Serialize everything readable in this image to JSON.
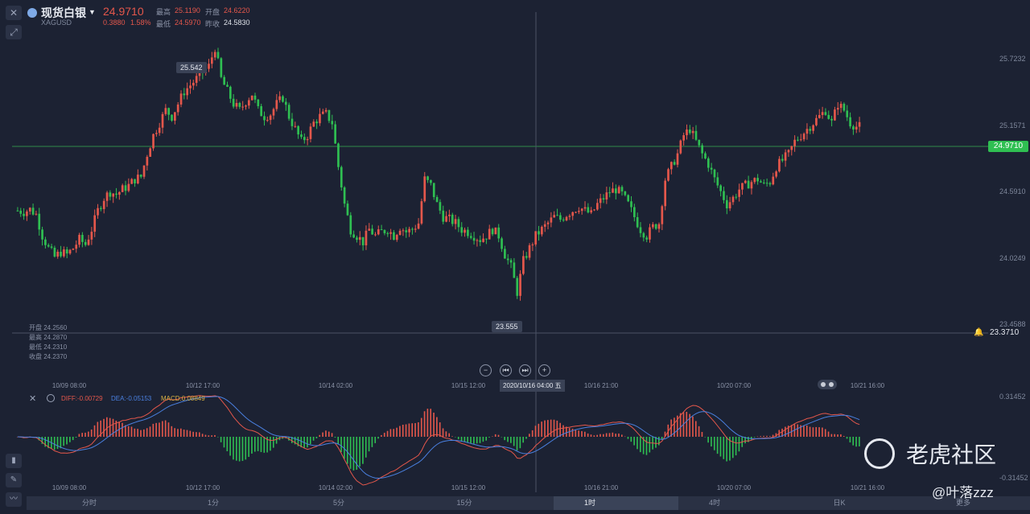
{
  "header": {
    "symbol_name": "现货白银",
    "symbol_code": "XAGUSD",
    "last_price": "24.9710",
    "change": "0.3880",
    "change_pct": "1.58%",
    "high_label": "最高",
    "high_value": "25.1190",
    "open_label": "开盘",
    "open_value": "24.6220",
    "low_label": "最低",
    "low_value": "24.5970",
    "prev_close_label": "昨收",
    "prev_close_value": "24.5830"
  },
  "toolbar": {
    "close_icon": "close-icon",
    "draw_icon": "line-tool-icon"
  },
  "main_chart": {
    "high_marker": "25.542",
    "low_marker": "23.555",
    "current_price_tag": "24.9710",
    "crosshair_price_tag": "23.3710",
    "y_ticks": [
      "25.7232",
      "25.1571",
      "24.5910",
      "24.0249",
      "23.4588"
    ],
    "ohlc_panel": [
      {
        "label": "开盘",
        "value": "24.2560"
      },
      {
        "label": "最高",
        "value": "24.2870"
      },
      {
        "label": "最低",
        "value": "24.2310"
      },
      {
        "label": "收盘",
        "value": "24.2370"
      }
    ],
    "date_labels": [
      "10/09 08:00",
      "10/12 17:00",
      "10/14 02:00",
      "10/15 12:00",
      "10/16 21:00",
      "10/20 07:00",
      "10/21 16:00"
    ],
    "crosshair_date": "2020/10/16 04:00 五",
    "colors": {
      "up": "#e4574b",
      "down": "#2fbf52"
    }
  },
  "macd": {
    "diff_label": "DIFF:-0.00729",
    "dea_label": "DEA:-0.05153",
    "macd_label": "MACD:0.08849",
    "y_top": "0.31452",
    "y_bottom": "-0.31452",
    "date_labels": [
      "10/09 08:00",
      "10/12 17:00",
      "10/14 02:00",
      "10/15 12:00",
      "10/16 21:00",
      "10/20 07:00",
      "10/21 16:00"
    ]
  },
  "timeframes": [
    "分时",
    "1分",
    "5分",
    "15分",
    "1时",
    "4时",
    "日K",
    "更多"
  ],
  "active_timeframe": "1时",
  "watermark": {
    "brand": "老虎社区",
    "user": "@叶落zzz"
  },
  "chart_data": {
    "type": "candlestick",
    "title": "现货白银 XAGUSD",
    "ylim": [
      23.3,
      25.8
    ],
    "y_ticks": [
      25.7232,
      25.1571,
      24.591,
      24.0249,
      23.4588
    ],
    "x_labels": [
      "10/09 08:00",
      "10/12 17:00",
      "10/14 02:00",
      "10/15 12:00",
      "10/16 21:00",
      "10/20 07:00",
      "10/21 16:00"
    ],
    "close_path": [
      24.25,
      24.24,
      24.26,
      24.22,
      24.05,
      23.95,
      23.88,
      23.92,
      23.9,
      23.95,
      24.02,
      23.98,
      24.1,
      24.25,
      24.35,
      24.4,
      24.38,
      24.42,
      24.45,
      24.5,
      24.52,
      24.7,
      24.85,
      24.95,
      25.05,
      25.0,
      25.1,
      25.2,
      25.25,
      25.3,
      25.35,
      25.4,
      25.55,
      25.3,
      25.2,
      25.1,
      25.05,
      25.12,
      25.18,
      25.05,
      25.0,
      25.02,
      25.1,
      25.15,
      25.0,
      24.9,
      24.8,
      24.85,
      24.95,
      25.0,
      25.02,
      24.95,
      24.6,
      24.3,
      24.1,
      24.05,
      24.0,
      24.1,
      24.05,
      24.08,
      24.1,
      24.05,
      24.12,
      24.08,
      24.1,
      24.15,
      24.5,
      24.45,
      24.3,
      24.2,
      24.18,
      24.15,
      24.1,
      24.08,
      24.05,
      24.02,
      24.05,
      24.1,
      24.05,
      23.9,
      23.8,
      23.6,
      23.85,
      23.95,
      24.05,
      24.1,
      24.15,
      24.2,
      24.18,
      24.22,
      24.25,
      24.28,
      24.25,
      24.22,
      24.3,
      24.35,
      24.4,
      24.42,
      24.38,
      24.3,
      24.2,
      24.1,
      24.05,
      24.12,
      24.15,
      24.5,
      24.6,
      24.7,
      24.85,
      24.9,
      24.8,
      24.7,
      24.62,
      24.5,
      24.4,
      24.3,
      24.35,
      24.42,
      24.45,
      24.48,
      24.5,
      24.45,
      24.48,
      24.6,
      24.65,
      24.7,
      24.8,
      24.85,
      24.9,
      24.95,
      25.0,
      25.05,
      24.95,
      25.1,
      25.05,
      24.95,
      24.92
    ]
  }
}
